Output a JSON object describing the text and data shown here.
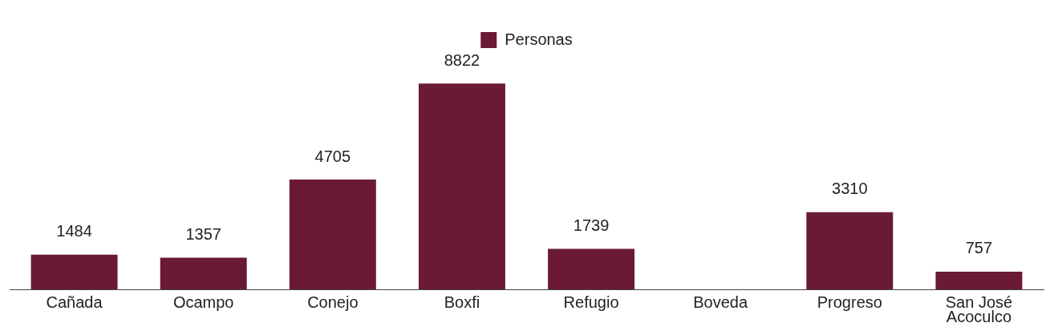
{
  "chart_data": {
    "type": "bar",
    "categories": [
      "Cañada",
      "Ocampo",
      "Conejo",
      "Boxfi",
      "Refugio",
      "Boveda",
      "Progreso",
      "San José Acoculco"
    ],
    "series": [
      {
        "name": "Personas",
        "color": "#6b1a33",
        "values": [
          1484,
          1357,
          4705,
          8822,
          1739,
          null,
          3310,
          757
        ]
      }
    ],
    "data_labels": true,
    "legend": "top",
    "grid": false
  }
}
